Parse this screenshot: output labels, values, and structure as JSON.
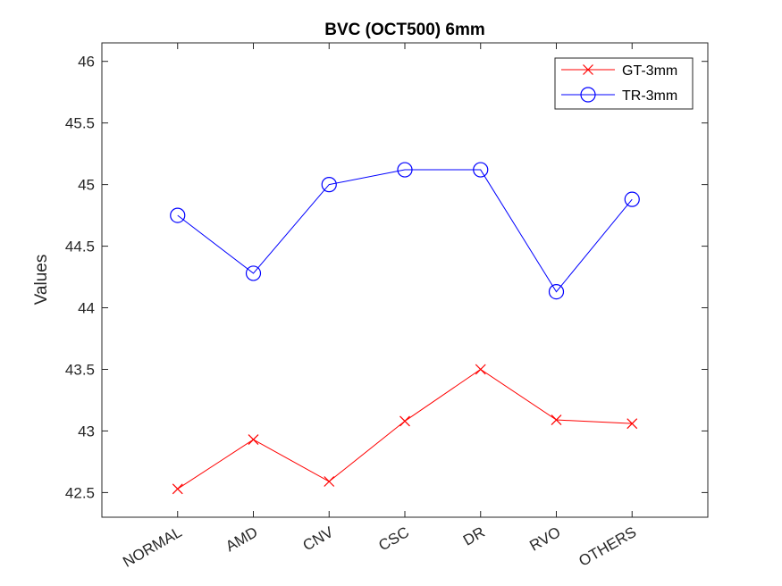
{
  "chart_data": {
    "type": "line",
    "title": "BVC (OCT500) 6mm",
    "xlabel": "",
    "ylabel": "Values",
    "categories": [
      "NORMAL",
      "AMD",
      "CNV",
      "CSC",
      "DR",
      "RVO",
      "OTHERS"
    ],
    "ylim": [
      42.3,
      46.15
    ],
    "yticks": [
      42.5,
      43,
      43.5,
      44,
      44.5,
      45,
      45.5,
      46
    ],
    "grid": false,
    "legend_position": "top-right",
    "series": [
      {
        "name": "GT-3mm",
        "color": "#ff0000",
        "marker": "x",
        "values": [
          42.53,
          42.93,
          42.59,
          43.08,
          43.5,
          43.09,
          43.06
        ]
      },
      {
        "name": "TR-3mm",
        "color": "#0000ff",
        "marker": "circle",
        "values": [
          44.75,
          44.28,
          45.0,
          45.12,
          45.12,
          44.13,
          44.88
        ]
      }
    ]
  }
}
